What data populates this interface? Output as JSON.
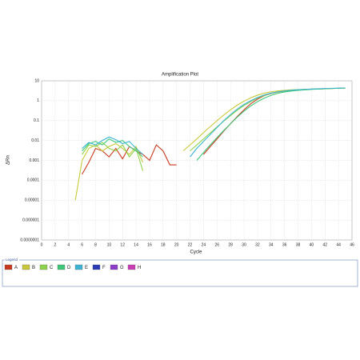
{
  "chart_data": {
    "type": "line",
    "title": "Amplification Plot",
    "xlabel": "Cycle",
    "ylabel": "ΔRn",
    "legend_title": "Legend",
    "log_y": true,
    "grid": true,
    "x": [
      1,
      2,
      3,
      4,
      5,
      6,
      7,
      8,
      9,
      10,
      11,
      12,
      13,
      14,
      15,
      16,
      17,
      18,
      19,
      20,
      21,
      22,
      23,
      24,
      25,
      26,
      27,
      28,
      29,
      30,
      31,
      32,
      33,
      34,
      35,
      36,
      37,
      38,
      39,
      40,
      41,
      42,
      43,
      44,
      45
    ],
    "xlim": [
      0,
      46
    ],
    "xticks": [
      0,
      2,
      4,
      6,
      8,
      10,
      12,
      14,
      16,
      18,
      20,
      22,
      24,
      26,
      28,
      30,
      32,
      34,
      36,
      38,
      40,
      42,
      44,
      46
    ],
    "ylim": [
      1e-07,
      10
    ],
    "yticks": [
      10,
      1,
      0.1,
      0.01,
      0.001,
      0.0001,
      1e-05,
      1e-06,
      {
        "value": 1e-07,
        "label": "0.0000001"
      }
    ],
    "series": [
      {
        "name": "A",
        "color": "#c8381c",
        "values": [
          null,
          null,
          null,
          null,
          null,
          0.0002,
          0.0008,
          0.004,
          0.003,
          0.0015,
          0.004,
          0.0012,
          0.005,
          0.003,
          0.002,
          0.001,
          0.006,
          0.003,
          0.0006,
          0.0006,
          null,
          null,
          null,
          0.002,
          0.005,
          0.012,
          0.03,
          0.07,
          0.16,
          0.35,
          0.7,
          1.2,
          1.8,
          2.3,
          2.7,
          3.0,
          3.3,
          3.5,
          3.7,
          3.8,
          3.9,
          4.0,
          4.1,
          4.2,
          4.3
        ]
      },
      {
        "name": "B",
        "color": "#c8c83a",
        "values": [
          null,
          null,
          null,
          null,
          1e-05,
          0.001,
          0.004,
          0.006,
          0.003,
          0.005,
          0.007,
          0.004,
          0.002,
          0.005,
          0.0008,
          null,
          null,
          null,
          null,
          null,
          0.003,
          0.006,
          0.012,
          0.025,
          0.05,
          0.1,
          0.19,
          0.35,
          0.6,
          0.95,
          1.4,
          1.9,
          2.4,
          2.8,
          3.1,
          3.3,
          3.5,
          3.6,
          3.7,
          3.8,
          3.9,
          4.0,
          4.1,
          4.2,
          4.3
        ]
      },
      {
        "name": "C",
        "color": "#8cd24a",
        "values": [
          null,
          null,
          null,
          null,
          null,
          0.002,
          0.006,
          0.005,
          0.008,
          0.004,
          0.003,
          0.006,
          0.0015,
          0.004,
          0.0003,
          null,
          null,
          null,
          null,
          null,
          null,
          0.003,
          0.006,
          0.012,
          0.024,
          0.048,
          0.095,
          0.18,
          0.33,
          0.58,
          0.9,
          1.35,
          1.85,
          2.35,
          2.75,
          3.05,
          3.3,
          3.5,
          3.65,
          3.8,
          3.9,
          4.0,
          4.1,
          4.2,
          4.3
        ]
      },
      {
        "name": "D",
        "color": "#3cc878",
        "values": [
          null,
          null,
          null,
          null,
          null,
          0.003,
          0.007,
          0.009,
          0.006,
          0.012,
          0.008,
          0.01,
          0.005,
          0.003,
          0.0015,
          null,
          null,
          null,
          null,
          null,
          null,
          null,
          0.001,
          0.0025,
          0.006,
          0.014,
          0.032,
          0.07,
          0.15,
          0.3,
          0.55,
          0.9,
          1.35,
          1.85,
          2.35,
          2.75,
          3.05,
          3.3,
          3.5,
          3.7,
          3.85,
          4.0,
          4.1,
          4.2,
          4.3
        ]
      },
      {
        "name": "E",
        "color": "#3ab4d2",
        "values": [
          null,
          null,
          null,
          null,
          null,
          0.004,
          0.008,
          0.006,
          0.01,
          0.015,
          0.011,
          0.007,
          0.009,
          0.004,
          0.002,
          null,
          null,
          null,
          null,
          null,
          null,
          0.0015,
          0.004,
          0.009,
          0.02,
          0.045,
          0.1,
          0.2,
          0.38,
          0.65,
          1.0,
          1.45,
          1.95,
          2.4,
          2.8,
          3.1,
          3.35,
          3.55,
          3.7,
          3.85,
          4.0,
          4.1,
          4.2,
          4.3,
          4.4
        ]
      },
      {
        "name": "F",
        "color": "#2a3cb4",
        "values": [
          null,
          null,
          null,
          null,
          null,
          null,
          null,
          null,
          null,
          null,
          null,
          null,
          null,
          null,
          null,
          null,
          null,
          null,
          null,
          null,
          null,
          null,
          null,
          null,
          null,
          null,
          null,
          null,
          null,
          null,
          null,
          null,
          null,
          null,
          null,
          null,
          null,
          null,
          null,
          null,
          null,
          null,
          null,
          null,
          null
        ]
      },
      {
        "name": "G",
        "color": "#8c3cc8",
        "values": [
          null,
          null,
          null,
          null,
          null,
          null,
          null,
          null,
          null,
          null,
          null,
          null,
          null,
          null,
          null,
          null,
          null,
          null,
          null,
          null,
          null,
          null,
          null,
          null,
          null,
          null,
          null,
          null,
          null,
          null,
          null,
          null,
          null,
          null,
          null,
          null,
          null,
          null,
          null,
          null,
          null,
          null,
          null,
          null,
          null
        ]
      },
      {
        "name": "H",
        "color": "#c83cb4",
        "values": [
          null,
          null,
          null,
          null,
          null,
          null,
          null,
          null,
          null,
          null,
          null,
          null,
          null,
          null,
          null,
          null,
          null,
          null,
          null,
          null,
          null,
          null,
          null,
          null,
          null,
          null,
          null,
          null,
          null,
          null,
          null,
          null,
          null,
          null,
          null,
          null,
          null,
          null,
          null,
          null,
          null,
          null,
          null,
          null,
          null
        ]
      }
    ]
  }
}
